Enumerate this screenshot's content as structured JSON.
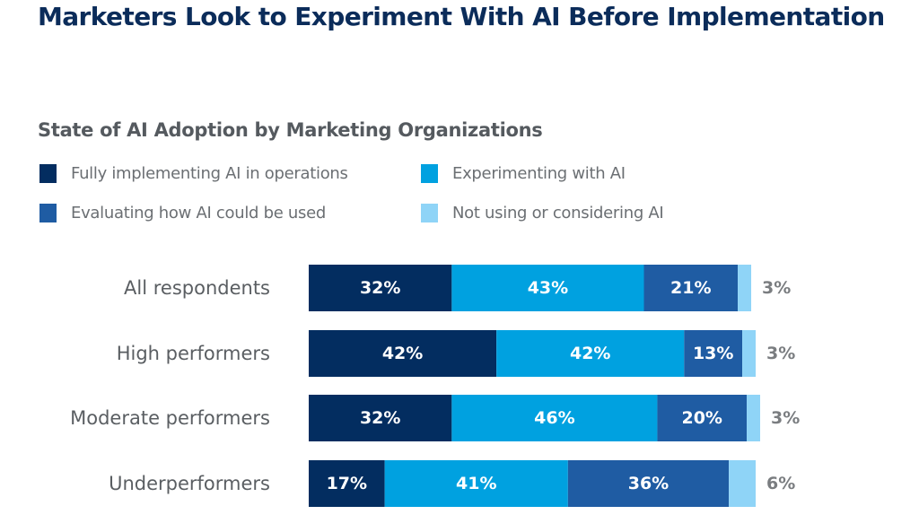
{
  "header": {
    "title": "Marketers Look to Experiment With AI Before Implementation"
  },
  "chart_data": {
    "type": "bar",
    "orientation": "horizontal",
    "stacked": true,
    "title": "State of AI Adoption by Marketing Organizations",
    "xlabel": "",
    "ylabel": "",
    "xlim": [
      0,
      100
    ],
    "grid": false,
    "legend_position": "top-left",
    "categories": [
      "All respondents",
      "High performers",
      "Moderate performers",
      "Underperformers"
    ],
    "series": [
      {
        "name": "Fully implementing AI in operations",
        "color": "#032d60",
        "values": [
          32,
          42,
          32,
          17
        ],
        "labels": [
          "32%",
          "42%",
          "32%",
          "17%"
        ]
      },
      {
        "name": "Experimenting with AI",
        "color": "#00a1e0",
        "values": [
          43,
          42,
          46,
          41
        ],
        "labels": [
          "43%",
          "42%",
          "46%",
          "41%"
        ]
      },
      {
        "name": "Evaluating how AI could be used",
        "color": "#1f5ca3",
        "values": [
          21,
          13,
          20,
          36
        ],
        "labels": [
          "21%",
          "13%",
          "20%",
          "36%"
        ]
      },
      {
        "name": "Not using or considering AI",
        "color": "#8fd4f7",
        "values": [
          3,
          3,
          3,
          6
        ],
        "labels": [
          "3%",
          "3%",
          "3%",
          "6%"
        ]
      }
    ],
    "legend": [
      {
        "label": "Fully implementing AI in operations",
        "color": "#032d60"
      },
      {
        "label": "Experimenting with AI",
        "color": "#00a1e0"
      },
      {
        "label": "Evaluating how AI could be used",
        "color": "#1f5ca3"
      },
      {
        "label": "Not using or considering AI",
        "color": "#8fd4f7"
      }
    ],
    "colors": {
      "inside_label": "#ffffff",
      "outside_label": "#7a7d80",
      "category_label": "#5a5e62"
    }
  }
}
